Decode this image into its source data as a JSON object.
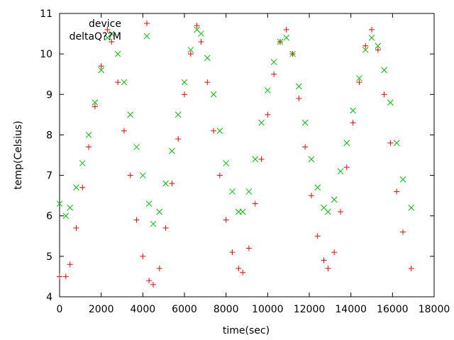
{
  "chart_data": {
    "type": "scatter",
    "title": "",
    "xlabel": "time(sec)",
    "ylabel": "temp(Celsius)",
    "xlim": [
      0,
      18000
    ],
    "ylim": [
      4,
      11
    ],
    "xticks": [
      0,
      2000,
      4000,
      6000,
      8000,
      10000,
      12000,
      14000,
      16000,
      18000
    ],
    "yticks": [
      4,
      5,
      6,
      7,
      8,
      9,
      10,
      11
    ],
    "grid": false,
    "legend_position": "top-left",
    "series": [
      {
        "name": "device",
        "marker": "plus",
        "color": "#ff0000",
        "x": [
          0,
          300,
          500,
          800,
          1100,
          1400,
          1700,
          2000,
          2300,
          2500,
          2800,
          3100,
          3400,
          3700,
          4000,
          4300,
          4500,
          4800,
          5100,
          5400,
          5700,
          6000,
          6300,
          6600,
          6800,
          7100,
          7400,
          7700,
          8000,
          8300,
          8600,
          8800,
          9100,
          9400,
          9700,
          10000,
          10300,
          10600,
          10900,
          11200,
          11500,
          11800,
          12100,
          12400,
          12700,
          12900,
          13200,
          13500,
          13800,
          14100,
          14400,
          14700,
          15000,
          15300,
          15600,
          15900,
          16200,
          16500,
          16900
        ],
        "y": [
          4.5,
          4.5,
          4.8,
          5.7,
          6.7,
          7.7,
          8.7,
          9.7,
          10.6,
          10.3,
          9.3,
          8.1,
          7.0,
          5.9,
          5.0,
          4.4,
          4.3,
          4.7,
          5.7,
          6.8,
          7.9,
          9.0,
          10.0,
          10.7,
          10.3,
          9.3,
          8.1,
          7.0,
          5.9,
          5.1,
          4.7,
          4.6,
          5.2,
          6.3,
          7.4,
          8.5,
          9.5,
          10.3,
          10.6,
          10.0,
          8.9,
          7.7,
          6.5,
          5.5,
          4.9,
          4.7,
          5.1,
          6.1,
          7.2,
          8.3,
          9.3,
          10.2,
          10.6,
          10.1,
          9.0,
          7.8,
          6.6,
          5.6,
          4.7
        ]
      },
      {
        "name": "deltaQ??M",
        "marker": "cross",
        "color": "#00c000",
        "x": [
          0,
          300,
          500,
          800,
          1100,
          1400,
          1700,
          2000,
          2300,
          2500,
          2800,
          3100,
          3400,
          3700,
          4000,
          4300,
          4500,
          4800,
          5100,
          5400,
          5700,
          6000,
          6300,
          6600,
          6800,
          7100,
          7400,
          7700,
          8000,
          8300,
          8600,
          8800,
          9100,
          9400,
          9700,
          10000,
          10300,
          10600,
          10900,
          11200,
          11500,
          11800,
          12100,
          12400,
          12700,
          12900,
          13200,
          13500,
          13800,
          14100,
          14400,
          14700,
          15000,
          15300,
          15600,
          15900,
          16200,
          16500,
          16900
        ],
        "y": [
          6.3,
          6.0,
          6.2,
          6.7,
          7.3,
          8.0,
          8.8,
          9.6,
          10.4,
          10.5,
          10.0,
          9.3,
          8.5,
          7.7,
          7.0,
          6.3,
          5.8,
          6.1,
          6.8,
          7.6,
          8.5,
          9.3,
          10.1,
          10.6,
          10.5,
          9.9,
          9.0,
          8.1,
          7.3,
          6.6,
          6.1,
          6.1,
          6.6,
          7.4,
          8.3,
          9.1,
          9.8,
          10.3,
          10.4,
          10.0,
          9.2,
          8.3,
          7.4,
          6.7,
          6.2,
          6.1,
          6.4,
          7.1,
          7.8,
          8.6,
          9.4,
          10.1,
          10.4,
          10.2,
          9.6,
          8.8,
          7.8,
          6.9,
          6.2
        ]
      }
    ]
  }
}
